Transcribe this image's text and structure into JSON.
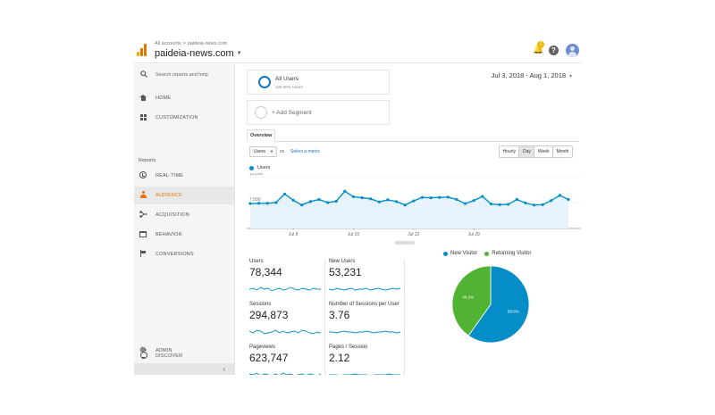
{
  "colors": {
    "accent_blue": "#058dc7",
    "pie_green": "#50b432",
    "link_blue": "#1a73c8",
    "active_orange": "#e8710a",
    "line_fill": "#e6f3fa"
  },
  "header": {
    "breadcrumb_root": "All accounts",
    "breadcrumb_sep": ">",
    "breadcrumb_property": "paideia-news.com",
    "property_name": "paideia-news.com",
    "notification_count": "1",
    "help_label": "?"
  },
  "sidebar": {
    "search_placeholder": "Search reports and help",
    "reports_label": "Reports",
    "items": [
      {
        "label": "HOME",
        "icon": "home-icon"
      },
      {
        "label": "CUSTOMIZATION",
        "icon": "dashboard-grid-icon"
      },
      {
        "label": "REAL-TIME",
        "icon": "clock-icon"
      },
      {
        "label": "AUDIENCE",
        "icon": "person-icon",
        "active": true
      },
      {
        "label": "ACQUISITION",
        "icon": "acquisition-icon"
      },
      {
        "label": "BEHAVIOR",
        "icon": "browser-window-icon"
      },
      {
        "label": "CONVERSIONS",
        "icon": "flag-icon"
      },
      {
        "label": "DISCOVER",
        "icon": "lightbulb-icon"
      },
      {
        "label": "ADMIN",
        "icon": "gear-icon"
      }
    ],
    "collapse_glyph": "‹"
  },
  "segments": {
    "primary_name": "All Users",
    "primary_sub": "100.00% Users",
    "add_label": "+ Add Segment"
  },
  "date_range": "Jul 3, 2018 - Aug 1, 2018",
  "tabs": [
    "Overview"
  ],
  "controls": {
    "metric_select": "Users",
    "vs_label": "vs.",
    "select_metric_link": "Select a metric",
    "granularity": [
      "Hourly",
      "Day",
      "Week",
      "Month"
    ],
    "granularity_selected": "Day"
  },
  "chart_data": [
    {
      "type": "area",
      "series": [
        {
          "name": "Users",
          "values": [
            7200,
            7300,
            7300,
            7500,
            10000,
            8200,
            6800,
            7800,
            8400,
            7500,
            7900,
            10800,
            9200,
            8900,
            8600,
            7700,
            8300,
            7800,
            6800,
            8000,
            9000,
            8900,
            9000,
            9100,
            8400,
            7200,
            8100,
            9300,
            7100,
            6900,
            7000,
            8400,
            7400,
            6800,
            6900,
            8100,
            9600,
            8400
          ]
        }
      ],
      "x_tick_labels": [
        "Jul 8",
        "Jul 15",
        "Jul 22",
        "Jul 29"
      ],
      "y_tick_labels": [
        "15,000",
        "7,500"
      ],
      "ylim": [
        0,
        15000
      ],
      "grid": true
    },
    {
      "type": "pie",
      "categories": [
        "New Visitor",
        "Returning Visitor"
      ],
      "values": [
        59.8,
        40.2
      ],
      "data_labels": [
        "59.8%",
        "40.2%"
      ],
      "legend": "top"
    }
  ],
  "metrics": [
    {
      "label": "Users",
      "value": "78,344"
    },
    {
      "label": "New Users",
      "value": "53,231"
    },
    {
      "label": "Sessions",
      "value": "294,873"
    },
    {
      "label": "Number of Sessions per User",
      "value": "3.76"
    },
    {
      "label": "Pageviews",
      "value": "623,747"
    },
    {
      "label": "Pages / Session",
      "value": "2.12"
    }
  ]
}
